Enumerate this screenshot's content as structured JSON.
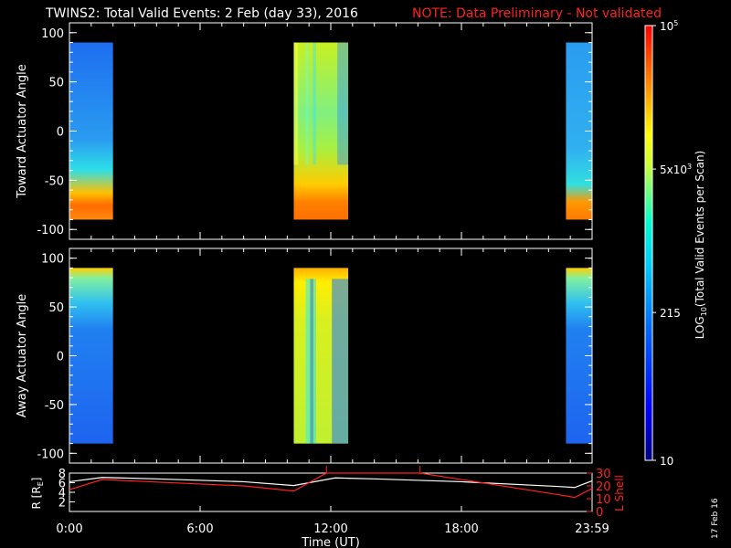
{
  "header": {
    "title": "TWINS2: Total Valid Events:  2 Feb (day  33), 2016",
    "note": "NOTE: Data Preliminary - Not validated",
    "note_color": "#ff2020"
  },
  "footer": {
    "date_stamp": "17 Feb 16"
  },
  "chart_data": [
    {
      "type": "heatmap",
      "panel": "toward",
      "ylabel": "Toward Actuator Angle",
      "ylim": [
        -110,
        110
      ],
      "yticks": [
        "100",
        "50",
        "0",
        "-50",
        "-100"
      ],
      "data_gaps_note": "data present only during three time blocks",
      "time_blocks_hours": [
        [
          0.0,
          2.0
        ],
        [
          10.3,
          12.8
        ],
        [
          22.8,
          24.0
        ]
      ],
      "angle_range": [
        -90,
        90
      ]
    },
    {
      "type": "heatmap",
      "panel": "away",
      "ylabel": "Away Actuator Angle",
      "ylim": [
        -110,
        110
      ],
      "yticks": [
        "100",
        "50",
        "0",
        "-50",
        "-100"
      ],
      "time_blocks_hours": [
        [
          0.0,
          2.0
        ],
        [
          10.3,
          12.8
        ],
        [
          22.8,
          24.0
        ]
      ],
      "angle_range": [
        -90,
        90
      ]
    },
    {
      "type": "line",
      "panel": "orbit",
      "ylabel_left": "R [R",
      "ylabel_left_sub": "E",
      "ylabel_left_end": "]",
      "ylabel_right": "L Shell",
      "yticks_left": [
        "8",
        "6",
        "4",
        "2"
      ],
      "yticks_right": [
        "30",
        "20",
        "10",
        "0"
      ],
      "ylim_left": [
        0,
        8
      ],
      "ylim_right": [
        0,
        30
      ],
      "series": [
        {
          "name": "R",
          "color": "#ffffff",
          "x": [
            0,
            1.5,
            4,
            8,
            10.3,
            12.2,
            14,
            18,
            22.5,
            23.2,
            24
          ],
          "y": [
            6.2,
            7.1,
            6.8,
            6.2,
            5.4,
            7.0,
            6.8,
            6.2,
            5.2,
            5.0,
            6.4
          ]
        },
        {
          "name": "L Shell",
          "color": "#ff2020",
          "x": [
            0,
            1.5,
            4,
            8,
            10.3,
            11.8,
            16.1,
            22.5,
            23.2,
            24
          ],
          "y": [
            17,
            25,
            23,
            20,
            16,
            30,
            30,
            13,
            11,
            18
          ]
        }
      ]
    }
  ],
  "xaxis": {
    "ticks": [
      "0:00",
      "6:00",
      "12:00",
      "18:00",
      "23:59"
    ],
    "tick_hours": [
      0,
      6,
      12,
      18,
      24
    ],
    "label": "Time (UT)"
  },
  "colorbar": {
    "label": "LOG",
    "label_sub": "10",
    "label_rest": "(Total Valid  Events per Scan)",
    "ticks": [
      {
        "base": "10",
        "exp": "5",
        "fraction": 1.0
      },
      {
        "base": "5x10",
        "exp": "3",
        "fraction": 0.67
      },
      {
        "base": "215",
        "exp": "",
        "fraction": 0.34
      },
      {
        "base": "10",
        "exp": "",
        "fraction": 0.0
      }
    ],
    "colors": [
      "#000080",
      "#0000ff",
      "#0066ff",
      "#00ccff",
      "#00ffcc",
      "#ccff33",
      "#ffff00",
      "#ff9900",
      "#ff3300",
      "#ff0000"
    ]
  }
}
